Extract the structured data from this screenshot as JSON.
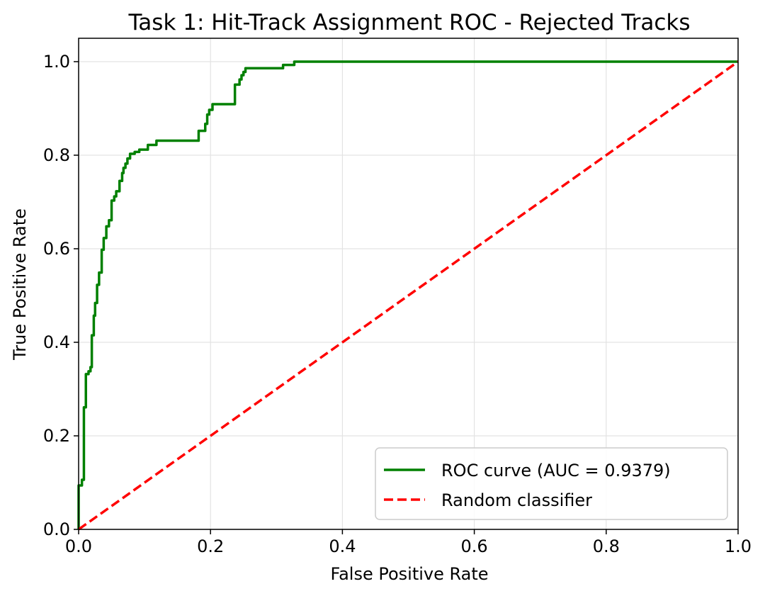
{
  "chart_data": {
    "type": "line",
    "title": "Task 1: Hit-Track Assignment ROC - Rejected Tracks",
    "xlabel": "False Positive Rate",
    "ylabel": "True Positive Rate",
    "xlim": [
      0.0,
      1.0
    ],
    "ylim": [
      0.0,
      1.05
    ],
    "xticks": [
      0.0,
      0.2,
      0.4,
      0.6,
      0.8,
      1.0
    ],
    "xtick_labels": [
      "0.0",
      "0.2",
      "0.4",
      "0.6",
      "0.8",
      "1.0"
    ],
    "yticks": [
      0.0,
      0.2,
      0.4,
      0.6,
      0.8,
      1.0
    ],
    "ytick_labels": [
      "0.0",
      "0.2",
      "0.4",
      "0.6",
      "0.8",
      "1.0"
    ],
    "grid": true,
    "legend_position": "lower-right",
    "series": [
      {
        "name": "ROC curve (AUC = 0.9379)",
        "color": "#008000",
        "style": "solid",
        "x": [
          0.0,
          0.0,
          0.005,
          0.005,
          0.008,
          0.008,
          0.011,
          0.011,
          0.015,
          0.015,
          0.018,
          0.018,
          0.02,
          0.02,
          0.023,
          0.023,
          0.025,
          0.025,
          0.028,
          0.028,
          0.031,
          0.031,
          0.035,
          0.035,
          0.038,
          0.038,
          0.042,
          0.042,
          0.046,
          0.046,
          0.05,
          0.05,
          0.054,
          0.054,
          0.057,
          0.057,
          0.062,
          0.062,
          0.066,
          0.066,
          0.068,
          0.068,
          0.071,
          0.071,
          0.074,
          0.074,
          0.078,
          0.078,
          0.085,
          0.085,
          0.092,
          0.092,
          0.105,
          0.105,
          0.118,
          0.118,
          0.128,
          0.128,
          0.182,
          0.182,
          0.192,
          0.192,
          0.195,
          0.195,
          0.198,
          0.198,
          0.203,
          0.203,
          0.237,
          0.237,
          0.244,
          0.244,
          0.247,
          0.247,
          0.25,
          0.25,
          0.253,
          0.253,
          0.255,
          0.255,
          0.31,
          0.31,
          0.327,
          0.327,
          0.335,
          1.0
        ],
        "y": [
          0.0,
          0.094,
          0.094,
          0.106,
          0.106,
          0.261,
          0.261,
          0.332,
          0.332,
          0.338,
          0.338,
          0.347,
          0.347,
          0.415,
          0.415,
          0.457,
          0.457,
          0.484,
          0.484,
          0.523,
          0.523,
          0.549,
          0.549,
          0.598,
          0.598,
          0.623,
          0.623,
          0.648,
          0.648,
          0.661,
          0.661,
          0.703,
          0.703,
          0.712,
          0.712,
          0.723,
          0.723,
          0.745,
          0.745,
          0.762,
          0.762,
          0.773,
          0.773,
          0.782,
          0.782,
          0.793,
          0.793,
          0.803,
          0.803,
          0.807,
          0.807,
          0.812,
          0.812,
          0.822,
          0.822,
          0.831,
          0.831,
          0.831,
          0.831,
          0.852,
          0.852,
          0.867,
          0.867,
          0.887,
          0.887,
          0.897,
          0.897,
          0.909,
          0.909,
          0.951,
          0.951,
          0.962,
          0.962,
          0.971,
          0.971,
          0.978,
          0.978,
          0.986,
          0.986,
          0.986,
          0.986,
          0.993,
          0.993,
          1.0,
          1.0,
          1.0
        ]
      },
      {
        "name": "Random classifier",
        "color": "#ff0000",
        "style": "dashed",
        "x": [
          0.0,
          1.0
        ],
        "y": [
          0.0,
          1.0
        ]
      }
    ]
  }
}
